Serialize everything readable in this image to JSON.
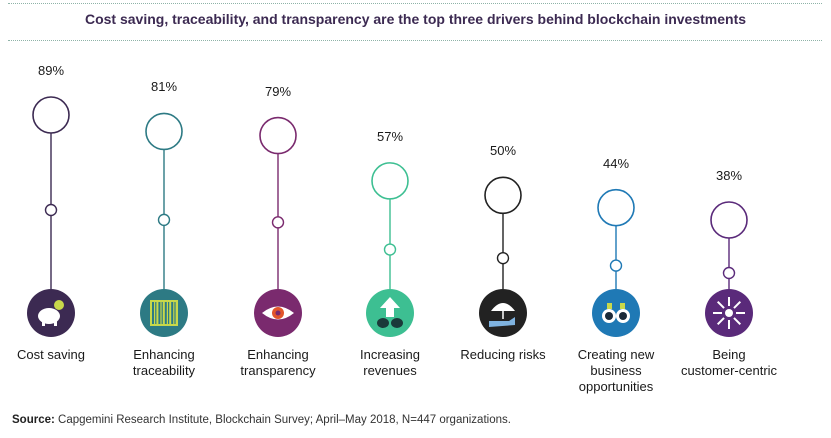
{
  "title": "Cost saving, traceability, and transparency are the top three drivers behind blockchain investments",
  "source_label": "Source:",
  "source_text": "Capgemini Research Institute, Blockchain Survey; April–May 2018, N=447 organizations.",
  "colors": {
    "purple": "#3c2a52",
    "teal": "#2d7a84",
    "magenta": "#7a2a6e",
    "green": "#3dbf92",
    "dark": "#222222",
    "blue": "#1f79b5",
    "violet": "#5a2a7a"
  },
  "chart_data": {
    "type": "lollipop",
    "categories": [
      "Cost saving",
      "Enhancing traceability",
      "Enhancing transparency",
      "Increasing revenues",
      "Reducing risks",
      "Creating new business opportunities",
      "Being customer-centric"
    ],
    "values": [
      89,
      81,
      79,
      57,
      50,
      44,
      38
    ],
    "value_labels": [
      "89%",
      "81%",
      "79%",
      "57%",
      "50%",
      "44%",
      "38%"
    ],
    "label_lines": [
      [
        "Cost saving"
      ],
      [
        "Enhancing",
        "traceability"
      ],
      [
        "Enhancing",
        "transparency"
      ],
      [
        "Increasing",
        "revenues"
      ],
      [
        "Reducing risks"
      ],
      [
        "Creating new",
        "business",
        "opportunities"
      ],
      [
        "Being",
        "customer-centric"
      ]
    ],
    "icons": [
      "piggy-bank-icon",
      "barcode-icon",
      "eye-icon",
      "arrow-up-bags-icon",
      "umbrella-hand-icon",
      "binoculars-icon",
      "target-arrows-icon"
    ],
    "series_colors": [
      "#3c2a52",
      "#2d7a84",
      "#7a2a6e",
      "#3dbf92",
      "#222222",
      "#1f79b5",
      "#5a2a7a"
    ]
  }
}
